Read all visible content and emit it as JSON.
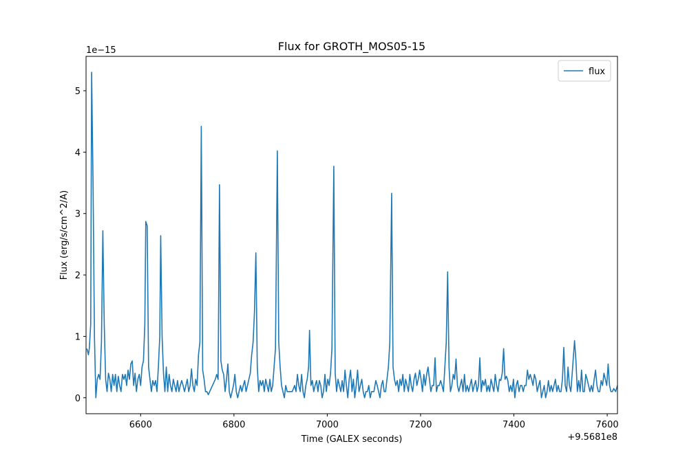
{
  "chart_data": {
    "type": "line",
    "title": "Flux for GROTH_MOS05-15",
    "x_label": "Time (GALEX seconds)",
    "y_label": "Flux (erg/s/cm^2/A)",
    "x_offset_label": "+9.5681e8",
    "y_offset_label": "1e−15",
    "legend": "upper right",
    "xlim": [
      6483,
      7622
    ],
    "ylim": [
      -0.26,
      5.56
    ],
    "xticks": [
      6600,
      6800,
      7000,
      7200,
      7400,
      7600
    ],
    "yticks": [
      0,
      1,
      2,
      3,
      4,
      5
    ],
    "x": [
      6485,
      6488,
      6490,
      6493,
      6495,
      6498,
      6501,
      6504,
      6507,
      6510,
      6513,
      6516,
      6519,
      6522,
      6525,
      6528,
      6531,
      6534,
      6537,
      6540,
      6543,
      6546,
      6549,
      6552,
      6555,
      6558,
      6561,
      6564,
      6567,
      6570,
      6573,
      6576,
      6579,
      6582,
      6585,
      6588,
      6591,
      6594,
      6597,
      6600,
      6603,
      6606,
      6609,
      6611,
      6614,
      6617,
      6620,
      6623,
      6626,
      6629,
      6632,
      6635,
      6638,
      6641,
      6643,
      6646,
      6649,
      6652,
      6655,
      6658,
      6661,
      6664,
      6667,
      6670,
      6673,
      6676,
      6679,
      6682,
      6685,
      6688,
      6691,
      6694,
      6697,
      6700,
      6703,
      6706,
      6709,
      6712,
      6715,
      6718,
      6721,
      6724,
      6727,
      6730,
      6733,
      6736,
      6739,
      6742,
      6745,
      6748,
      6751,
      6754,
      6757,
      6760,
      6763,
      6766,
      6769,
      6772,
      6775,
      6778,
      6781,
      6784,
      6787,
      6790,
      6793,
      6796,
      6799,
      6802,
      6805,
      6808,
      6811,
      6814,
      6817,
      6820,
      6823,
      6826,
      6829,
      6832,
      6835,
      6838,
      6841,
      6844,
      6847,
      6850,
      6853,
      6856,
      6859,
      6862,
      6865,
      6868,
      6871,
      6874,
      6877,
      6880,
      6883,
      6886,
      6889,
      6893,
      6896,
      6899,
      6902,
      6905,
      6908,
      6911,
      6914,
      6920,
      6925,
      6930,
      6933,
      6936,
      6939,
      6942,
      6945,
      6948,
      6951,
      6954,
      6957,
      6960,
      6962,
      6965,
      6968,
      6971,
      6974,
      6977,
      6980,
      6983,
      6986,
      6989,
      6992,
      6995,
      6998,
      7001,
      7004,
      7007,
      7010,
      7014,
      7017,
      7020,
      7023,
      7026,
      7029,
      7032,
      7035,
      7038,
      7041,
      7044,
      7047,
      7050,
      7053,
      7056,
      7059,
      7062,
      7065,
      7068,
      7071,
      7074,
      7077,
      7080,
      7083,
      7086,
      7089,
      7092,
      7095,
      7100,
      7104,
      7107,
      7110,
      7113,
      7116,
      7119,
      7122,
      7125,
      7128,
      7131,
      7134,
      7138,
      7141,
      7144,
      7147,
      7150,
      7153,
      7156,
      7159,
      7162,
      7165,
      7168,
      7171,
      7174,
      7177,
      7180,
      7183,
      7186,
      7189,
      7192,
      7195,
      7198,
      7201,
      7204,
      7207,
      7210,
      7213,
      7216,
      7219,
      7222,
      7225,
      7228,
      7231,
      7234,
      7237,
      7240,
      7243,
      7246,
      7249,
      7252,
      7255,
      7258,
      7261,
      7264,
      7267,
      7270,
      7273,
      7276,
      7279,
      7282,
      7285,
      7288,
      7291,
      7294,
      7297,
      7300,
      7303,
      7306,
      7309,
      7312,
      7315,
      7318,
      7321,
      7324,
      7327,
      7330,
      7333,
      7336,
      7339,
      7342,
      7345,
      7348,
      7351,
      7354,
      7357,
      7360,
      7363,
      7366,
      7369,
      7372,
      7375,
      7378,
      7381,
      7384,
      7387,
      7390,
      7393,
      7396,
      7399,
      7402,
      7405,
      7408,
      7411,
      7414,
      7417,
      7420,
      7423,
      7426,
      7429,
      7432,
      7435,
      7438,
      7441,
      7444,
      7447,
      7450,
      7453,
      7456,
      7459,
      7462,
      7465,
      7468,
      7471,
      7474,
      7477,
      7480,
      7483,
      7486,
      7489,
      7492,
      7495,
      7498,
      7501,
      7504,
      7507,
      7510,
      7513,
      7516,
      7519,
      7522,
      7525,
      7530,
      7533,
      7536,
      7539,
      7542,
      7545,
      7548,
      7551,
      7554,
      7557,
      7560,
      7563,
      7566,
      7569,
      7572,
      7575,
      7578,
      7581,
      7584,
      7587,
      7590,
      7593,
      7596,
      7599,
      7602,
      7605,
      7608,
      7611,
      7614,
      7618,
      7622
    ],
    "series": [
      {
        "name": "flux",
        "color": "#1f77b4",
        "values": [
          0.8,
          0.7,
          0.8,
          1.2,
          5.3,
          3.5,
          1.0,
          0.0,
          0.3,
          0.38,
          0.3,
          0.9,
          2.72,
          1.2,
          0.3,
          0.1,
          0.4,
          0.3,
          0.1,
          0.38,
          0.2,
          0.38,
          0.1,
          0.35,
          0.2,
          0.1,
          0.38,
          0.3,
          0.38,
          0.2,
          0.45,
          0.3,
          0.55,
          0.6,
          0.2,
          0.4,
          0.1,
          0.3,
          0.38,
          0.2,
          0.5,
          0.6,
          1.2,
          2.87,
          2.8,
          0.5,
          0.3,
          0.1,
          0.28,
          0.2,
          0.28,
          0.1,
          0.5,
          1.0,
          2.64,
          1.0,
          0.4,
          0.1,
          0.5,
          0.1,
          0.38,
          0.2,
          0.1,
          0.3,
          0.2,
          0.1,
          0.28,
          0.1,
          0.2,
          0.28,
          0.2,
          0.1,
          0.2,
          0.3,
          0.1,
          0.2,
          0.47,
          0.2,
          0.1,
          0.3,
          0.2,
          0.7,
          0.9,
          4.42,
          0.45,
          0.3,
          0.1,
          0.1,
          0.05,
          0.1,
          0.15,
          0.2,
          0.25,
          0.3,
          0.38,
          0.3,
          3.47,
          0.6,
          0.45,
          0.38,
          0.1,
          0.3,
          0.55,
          0.1,
          0.0,
          0.1,
          0.2,
          0.38,
          0.1,
          0.0,
          0.1,
          0.2,
          0.1,
          0.2,
          0.28,
          0.1,
          0.2,
          0.3,
          0.4,
          0.7,
          0.9,
          1.4,
          2.36,
          0.5,
          0.1,
          0.28,
          0.2,
          0.28,
          0.1,
          0.3,
          0.2,
          0.1,
          0.3,
          0.1,
          0.2,
          0.5,
          0.8,
          4.02,
          0.9,
          0.5,
          0.2,
          0.1,
          0.0,
          0.2,
          0.1,
          0.1,
          0.1,
          0.2,
          0.1,
          0.38,
          0.2,
          0.1,
          0.38,
          0.1,
          0.0,
          0.2,
          0.3,
          0.5,
          1.1,
          0.2,
          0.28,
          0.1,
          0.2,
          0.28,
          0.1,
          0.28,
          0.2,
          0.0,
          0.1,
          0.38,
          0.1,
          0.3,
          0.2,
          0.4,
          0.8,
          3.77,
          0.4,
          0.1,
          0.3,
          0.2,
          0.1,
          0.28,
          0.1,
          0.45,
          0.2,
          0.0,
          0.3,
          0.45,
          0.1,
          0.3,
          0.0,
          0.2,
          0.45,
          0.1,
          0.2,
          0.3,
          0.1,
          0.0,
          0.1,
          0.1,
          0.2,
          0.0,
          0.1,
          0.1,
          0.28,
          0.2,
          0.1,
          0.0,
          0.2,
          0.28,
          0.1,
          0.1,
          0.3,
          0.5,
          0.9,
          3.33,
          0.5,
          0.3,
          0.2,
          0.28,
          0.1,
          0.3,
          0.2,
          0.38,
          0.1,
          0.3,
          0.2,
          0.1,
          0.38,
          0.2,
          0.1,
          0.3,
          0.4,
          0.2,
          0.3,
          0.45,
          0.3,
          0.1,
          0.38,
          0.2,
          0.38,
          0.5,
          0.3,
          0.1,
          0.2,
          0.2,
          0.65,
          0.1,
          0.2,
          0.2,
          0.28,
          0.2,
          0.1,
          0.5,
          0.9,
          2.05,
          0.5,
          0.1,
          0.2,
          0.38,
          0.3,
          0.63,
          0.2,
          0.1,
          0.2,
          0.3,
          0.1,
          0.38,
          0.1,
          0.2,
          0.1,
          0.2,
          0.3,
          0.1,
          0.2,
          0.28,
          0.1,
          0.2,
          0.65,
          0.1,
          0.28,
          0.2,
          0.3,
          0.1,
          0.2,
          0.1,
          0.3,
          0.2,
          0.1,
          0.38,
          0.2,
          0.1,
          0.3,
          0.28,
          0.4,
          0.8,
          0.3,
          0.35,
          0.28,
          0.1,
          0.2,
          0.1,
          0.3,
          0.0,
          0.2,
          0.28,
          0.1,
          0.2,
          0.2,
          0.1,
          0.2,
          0.2,
          0.45,
          0.3,
          0.38,
          0.3,
          0.2,
          0.38,
          0.3,
          0.1,
          0.2,
          0.28,
          0.0,
          0.1,
          0.2,
          0.0,
          0.1,
          0.28,
          0.1,
          0.2,
          0.1,
          0.2,
          0.3,
          0.1,
          0.2,
          0.1,
          0.1,
          0.3,
          0.82,
          0.2,
          0.1,
          0.5,
          0.2,
          0.1,
          0.4,
          0.93,
          0.6,
          0.1,
          0.28,
          0.1,
          0.45,
          0.1,
          0.1,
          0.38,
          0.3,
          0.2,
          0.1,
          0.2,
          0.1,
          0.3,
          0.45,
          0.2,
          0.1,
          0.1,
          0.28,
          0.2,
          0.4,
          0.3,
          0.2,
          0.55,
          0.2,
          0.1,
          0.1,
          0.15,
          0.1,
          0.2
        ]
      }
    ]
  }
}
